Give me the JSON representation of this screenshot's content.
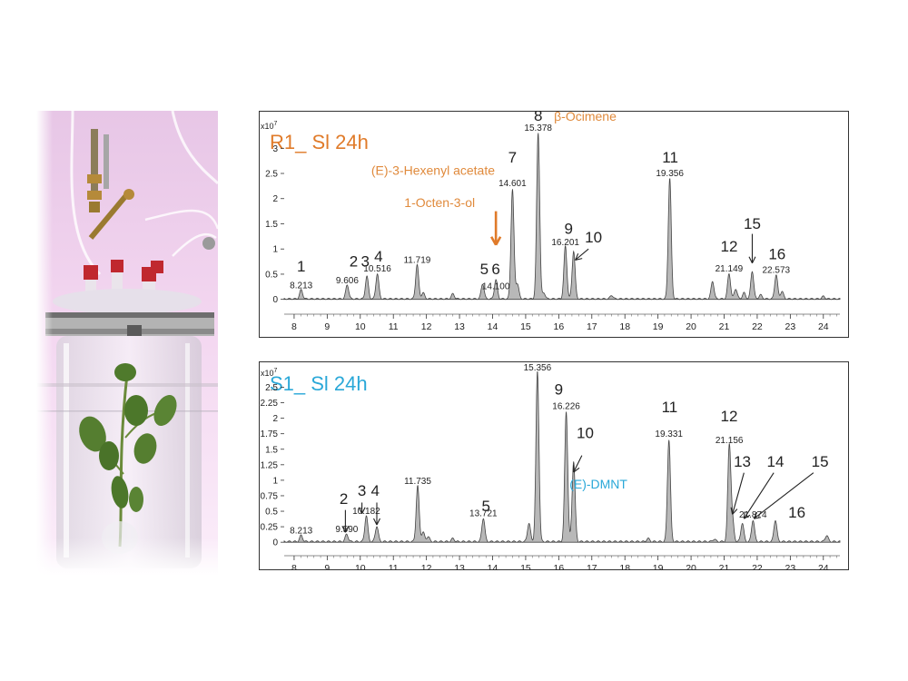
{
  "chart_data": [
    {
      "type": "line",
      "title": "R1_ Sl 24h",
      "title_color": "#e07b2a",
      "y_multiplier": "x10",
      "y_exponent": "7",
      "xlim": [
        7.7,
        24.5
      ],
      "ylim": [
        -0.15,
        3.6
      ],
      "x_ticks": [
        "8",
        "9",
        "10",
        "11",
        "12",
        "13",
        "14",
        "15",
        "16",
        "17",
        "18",
        "19",
        "20",
        "21",
        "22",
        "23",
        "24"
      ],
      "y_ticks": [
        "0",
        "0.5",
        "1",
        "1.5",
        "2",
        "2.5",
        "3"
      ],
      "peaks": [
        {
          "x": 8.213,
          "y": 0.18
        },
        {
          "x": 9.606,
          "y": 0.28
        },
        {
          "x": 10.2,
          "y": 0.45
        },
        {
          "x": 10.516,
          "y": 0.5
        },
        {
          "x": 11.719,
          "y": 0.68
        },
        {
          "x": 11.9,
          "y": 0.12
        },
        {
          "x": 12.8,
          "y": 0.1
        },
        {
          "x": 13.7,
          "y": 0.3
        },
        {
          "x": 14.1,
          "y": 0.38
        },
        {
          "x": 14.601,
          "y": 2.18
        },
        {
          "x": 14.75,
          "y": 0.3
        },
        {
          "x": 15.378,
          "y": 3.3
        },
        {
          "x": 15.55,
          "y": 0.12
        },
        {
          "x": 16.201,
          "y": 1.05
        },
        {
          "x": 16.45,
          "y": 0.95
        },
        {
          "x": 17.6,
          "y": 0.07
        },
        {
          "x": 19.356,
          "y": 2.4
        },
        {
          "x": 20.65,
          "y": 0.35
        },
        {
          "x": 21.149,
          "y": 0.5
        },
        {
          "x": 21.35,
          "y": 0.2
        },
        {
          "x": 21.6,
          "y": 0.12
        },
        {
          "x": 21.85,
          "y": 0.55
        },
        {
          "x": 22.1,
          "y": 0.08
        },
        {
          "x": 22.573,
          "y": 0.48
        },
        {
          "x": 22.75,
          "y": 0.15
        },
        {
          "x": 24.0,
          "y": 0.05
        }
      ],
      "labels": [
        {
          "text": "1",
          "x": 8.213,
          "y": 0.55
        },
        {
          "text": "8.213",
          "x": 8.213,
          "y": 0.22
        },
        {
          "text": "2",
          "x": 9.8,
          "y": 0.65
        },
        {
          "text": "3",
          "x": 10.15,
          "y": 0.65
        },
        {
          "text": "4",
          "x": 10.55,
          "y": 0.75
        },
        {
          "text": "9.606",
          "x": 9.606,
          "y": 0.32
        },
        {
          "text": "10.516",
          "x": 10.516,
          "y": 0.55
        },
        {
          "text": "11.719",
          "x": 11.719,
          "y": 0.72
        },
        {
          "text": "5",
          "x": 13.75,
          "y": 0.5
        },
        {
          "text": "6",
          "x": 14.1,
          "y": 0.5
        },
        {
          "text": "14.100",
          "x": 14.1,
          "y": 0.2
        },
        {
          "text": "7",
          "x": 14.6,
          "y": 2.72
        },
        {
          "text": "14.601",
          "x": 14.601,
          "y": 2.25
        },
        {
          "text": "8",
          "x": 15.38,
          "y": 3.55
        },
        {
          "text": "15.378",
          "x": 15.378,
          "y": 3.35
        },
        {
          "text": "9",
          "x": 16.3,
          "y": 1.3
        },
        {
          "text": "16.201",
          "x": 16.201,
          "y": 1.08
        },
        {
          "text": "10",
          "x": 17.05,
          "y": 1.13
        },
        {
          "text": "11",
          "x": 19.37,
          "y": 2.72
        },
        {
          "text": "19.356",
          "x": 19.356,
          "y": 2.45
        },
        {
          "text": "12",
          "x": 21.15,
          "y": 0.95
        },
        {
          "text": "21.149",
          "x": 21.149,
          "y": 0.55
        },
        {
          "text": "15",
          "x": 21.85,
          "y": 1.4
        },
        {
          "text": "16",
          "x": 22.6,
          "y": 0.8
        },
        {
          "text": "22.573",
          "x": 22.573,
          "y": 0.53
        }
      ],
      "compound_labels": [
        {
          "text": "β-Ocimene",
          "x": 16.8,
          "y": 3.55
        },
        {
          "text": "(E)-3-Hexenyl acetate",
          "x": 12.2,
          "y": 2.47
        },
        {
          "text": "1-Octen-3-ol",
          "x": 12.4,
          "y": 1.83
        }
      ],
      "compound_color": "#e08a3c",
      "arrows": [
        {
          "from": [
            14.1,
            1.75
          ],
          "to": [
            14.1,
            1.08
          ],
          "color": "#e07b2a"
        },
        {
          "from": [
            16.9,
            1.0
          ],
          "to": [
            16.5,
            0.78
          ],
          "color": "#222222"
        },
        {
          "from": [
            21.85,
            1.3
          ],
          "to": [
            21.85,
            0.72
          ],
          "color": "#222222"
        }
      ]
    },
    {
      "type": "line",
      "title": "S1_ Sl 24h",
      "title_color": "#2aa8d8",
      "y_multiplier": "x10",
      "y_exponent": "7",
      "xlim": [
        7.7,
        24.5
      ],
      "ylim": [
        -0.1,
        2.8
      ],
      "x_ticks": [
        "8",
        "9",
        "10",
        "11",
        "12",
        "13",
        "14",
        "15",
        "16",
        "17",
        "18",
        "19",
        "20",
        "21",
        "22",
        "23",
        "24"
      ],
      "y_ticks": [
        "0",
        "0.25",
        "0.5",
        "0.75",
        "1",
        "1.25",
        "1.5",
        "1.75",
        "2",
        "2.25",
        "2.5"
      ],
      "peaks": [
        {
          "x": 8.213,
          "y": 0.1
        },
        {
          "x": 9.59,
          "y": 0.12
        },
        {
          "x": 10.182,
          "y": 0.42
        },
        {
          "x": 10.5,
          "y": 0.25
        },
        {
          "x": 11.735,
          "y": 0.9
        },
        {
          "x": 11.9,
          "y": 0.15
        },
        {
          "x": 12.05,
          "y": 0.08
        },
        {
          "x": 12.8,
          "y": 0.05
        },
        {
          "x": 13.721,
          "y": 0.38
        },
        {
          "x": 15.1,
          "y": 0.3
        },
        {
          "x": 15.356,
          "y": 2.75
        },
        {
          "x": 16.226,
          "y": 2.1
        },
        {
          "x": 16.45,
          "y": 1.3
        },
        {
          "x": 18.7,
          "y": 0.05
        },
        {
          "x": 19.331,
          "y": 1.65
        },
        {
          "x": 20.7,
          "y": 0.04
        },
        {
          "x": 21.156,
          "y": 1.55
        },
        {
          "x": 21.25,
          "y": 0.35
        },
        {
          "x": 21.55,
          "y": 0.3
        },
        {
          "x": 21.874,
          "y": 0.35
        },
        {
          "x": 22.55,
          "y": 0.35
        },
        {
          "x": 24.1,
          "y": 0.1
        }
      ],
      "labels": [
        {
          "text": "8.213",
          "x": 8.213,
          "y": 0.14
        },
        {
          "text": "2",
          "x": 9.5,
          "y": 0.62
        },
        {
          "text": "9.590",
          "x": 9.59,
          "y": 0.16
        },
        {
          "text": "3",
          "x": 10.05,
          "y": 0.75
        },
        {
          "text": "4",
          "x": 10.45,
          "y": 0.75
        },
        {
          "text": "10.182",
          "x": 10.182,
          "y": 0.46
        },
        {
          "text": "11.735",
          "x": 11.735,
          "y": 0.94
        },
        {
          "text": "5",
          "x": 13.8,
          "y": 0.5
        },
        {
          "text": "13.721",
          "x": 13.721,
          "y": 0.42
        },
        {
          "text": "8",
          "x": 15.36,
          "y": 2.93
        },
        {
          "text": "15.356",
          "x": 15.356,
          "y": 2.77
        },
        {
          "text": "9",
          "x": 16.0,
          "y": 2.38
        },
        {
          "text": "16.226",
          "x": 16.226,
          "y": 2.15
        },
        {
          "text": "10",
          "x": 16.8,
          "y": 1.68
        },
        {
          "text": "11",
          "x": 19.35,
          "y": 2.1
        },
        {
          "text": "19.331",
          "x": 19.331,
          "y": 1.7
        },
        {
          "text": "12",
          "x": 21.15,
          "y": 1.95
        },
        {
          "text": "21.156",
          "x": 21.156,
          "y": 1.6
        },
        {
          "text": "13",
          "x": 21.55,
          "y": 1.22
        },
        {
          "text": "14",
          "x": 22.55,
          "y": 1.22
        },
        {
          "text": "21.874",
          "x": 21.874,
          "y": 0.4
        },
        {
          "text": "15",
          "x": 23.9,
          "y": 1.22
        },
        {
          "text": "16",
          "x": 23.2,
          "y": 0.4
        }
      ],
      "compound_labels": [
        {
          "text": "(E)-DMNT",
          "x": 17.2,
          "y": 0.87
        }
      ],
      "compound_color": "#2aa8d8",
      "arrows": [
        {
          "from": [
            9.55,
            0.52
          ],
          "to": [
            9.55,
            0.16
          ],
          "color": "#222222"
        },
        {
          "from": [
            10.05,
            0.64
          ],
          "to": [
            10.05,
            0.46
          ],
          "color": "#222222"
        },
        {
          "from": [
            10.5,
            0.64
          ],
          "to": [
            10.5,
            0.28
          ],
          "color": "#222222"
        },
        {
          "from": [
            16.7,
            1.4
          ],
          "to": [
            16.45,
            1.13
          ],
          "color": "#222222"
        },
        {
          "from": [
            21.6,
            1.12
          ],
          "to": [
            21.25,
            0.45
          ],
          "color": "#222222"
        },
        {
          "from": [
            22.5,
            1.12
          ],
          "to": [
            21.6,
            0.38
          ],
          "color": "#222222"
        },
        {
          "from": [
            23.7,
            1.12
          ],
          "to": [
            21.9,
            0.38
          ],
          "color": "#222222"
        }
      ]
    }
  ]
}
